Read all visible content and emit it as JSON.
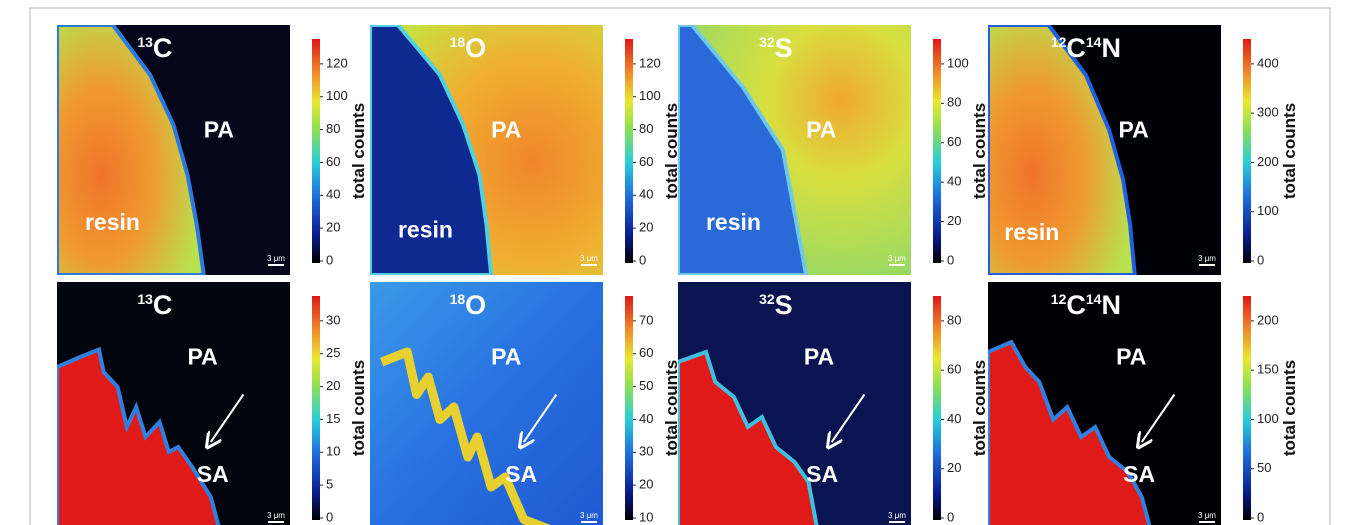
{
  "panels": [
    {
      "label": [
        {
          "sup": "13",
          "text": "C"
        }
      ],
      "regions": [
        "PA",
        "resin"
      ],
      "scale_bar": "3 μm",
      "colorbar_title": "total counts",
      "ticks": [
        0,
        20,
        40,
        60,
        80,
        100,
        120
      ]
    },
    {
      "label": [
        {
          "sup": "18",
          "text": "O"
        }
      ],
      "regions": [
        "PA",
        "resin"
      ],
      "scale_bar": "3 μm",
      "colorbar_title": "total counts",
      "ticks": [
        0,
        20,
        40,
        60,
        80,
        100,
        120
      ]
    },
    {
      "label": [
        {
          "sup": "32",
          "text": "S"
        }
      ],
      "regions": [
        "PA",
        "resin"
      ],
      "scale_bar": "3 μm",
      "colorbar_title": "total counts",
      "ticks": [
        0,
        20,
        40,
        60,
        80,
        100
      ]
    },
    {
      "label": [
        {
          "sup": "12",
          "text": "C"
        },
        {
          "sup": "14",
          "text": "N"
        }
      ],
      "regions": [
        "PA",
        "resin"
      ],
      "scale_bar": "3 μm",
      "colorbar_title": "total counts",
      "ticks": [
        0,
        100,
        200,
        300,
        400
      ]
    },
    {
      "label": [
        {
          "sup": "13",
          "text": "C"
        }
      ],
      "regions": [
        "PA",
        "SA"
      ],
      "scale_bar": "3 μm",
      "colorbar_title": "total counts",
      "ticks": [
        0,
        5,
        10,
        15,
        20,
        25,
        30
      ]
    },
    {
      "label": [
        {
          "sup": "18",
          "text": "O"
        }
      ],
      "regions": [
        "PA",
        "SA"
      ],
      "scale_bar": "3 μm",
      "colorbar_title": "total counts",
      "ticks": [
        10,
        20,
        30,
        40,
        50,
        60,
        70
      ]
    },
    {
      "label": [
        {
          "sup": "32",
          "text": "S"
        }
      ],
      "regions": [
        "PA",
        "SA"
      ],
      "scale_bar": "3 μm",
      "colorbar_title": "total counts",
      "ticks": [
        0,
        20,
        40,
        60,
        80
      ]
    },
    {
      "label": [
        {
          "sup": "12",
          "text": "C"
        },
        {
          "sup": "14",
          "text": "N"
        }
      ],
      "regions": [
        "PA",
        "SA"
      ],
      "scale_bar": "3 μm",
      "colorbar_title": "total counts",
      "ticks": [
        0,
        50,
        100,
        150,
        200
      ]
    }
  ]
}
